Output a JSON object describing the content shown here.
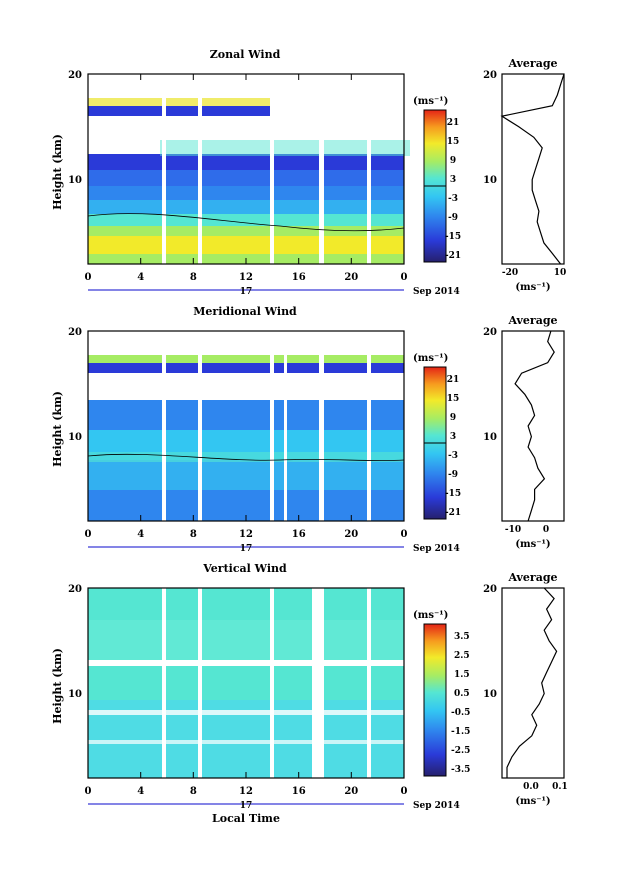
{
  "figure": {
    "xlabel": "Local Time",
    "date_label": "Sep 2014",
    "day_label": "17",
    "colorbar_unit": "(ms⁻¹)",
    "average_unit": "(ms⁻¹)",
    "y_axis_label": "Height (km)"
  },
  "chart_data": [
    {
      "type": "heatmap",
      "title": "Zonal Wind",
      "ylabel": "Height (km)",
      "xlabel": "",
      "x_ticks": [
        "0",
        "4",
        "8",
        "12",
        "16",
        "20",
        "0"
      ],
      "x_range": [
        0,
        24
      ],
      "y_ticks": [
        "20",
        "10"
      ],
      "ylim": [
        2,
        20
      ],
      "colorbar": {
        "unit": "(ms⁻¹)",
        "ticks": [
          "21",
          "15",
          "9",
          "3",
          "-3",
          "-9",
          "-15",
          "-21"
        ],
        "range": [
          -24,
          24
        ]
      },
      "data_gaps_hours": [
        [
          5.8,
          6.2
        ],
        [
          8.8,
          9.2
        ],
        [
          14.0,
          14.3
        ],
        [
          17.9,
          18.3
        ],
        [
          21.6,
          21.9
        ]
      ],
      "profile": {
        "title": "Average",
        "x_ticks": [
          "-20",
          "10"
        ],
        "xlim": [
          -25,
          12
        ],
        "height_km": [
          2,
          3,
          4,
          5,
          6,
          7,
          8,
          9,
          10,
          11,
          12,
          13,
          14,
          15,
          16,
          17,
          18,
          19,
          20
        ],
        "values": [
          10,
          5,
          0,
          -2,
          -4,
          -3,
          -5,
          -7,
          -7,
          -5,
          -3,
          -1,
          -6,
          -15,
          -25,
          5,
          8,
          10,
          12
        ]
      }
    },
    {
      "type": "heatmap",
      "title": "Meridional Wind",
      "ylabel": "Height (km)",
      "xlabel": "",
      "x_ticks": [
        "0",
        "4",
        "8",
        "12",
        "16",
        "20",
        "0"
      ],
      "x_range": [
        0,
        24
      ],
      "y_ticks": [
        "20",
        "10"
      ],
      "ylim": [
        2,
        20
      ],
      "colorbar": {
        "unit": "(ms⁻¹)",
        "ticks": [
          "21",
          "15",
          "9",
          "3",
          "-3",
          "-9",
          "-15",
          "-21"
        ],
        "range": [
          -24,
          24
        ]
      },
      "data_gaps_hours": [
        [
          5.8,
          6.2
        ],
        [
          8.8,
          9.2
        ],
        [
          14.0,
          14.3
        ],
        [
          15.5,
          15.7
        ],
        [
          17.9,
          18.3
        ],
        [
          21.6,
          21.9
        ]
      ],
      "profile": {
        "title": "Average",
        "x_ticks": [
          "-10",
          "0"
        ],
        "xlim": [
          -14,
          5
        ],
        "height_km": [
          2,
          3,
          4,
          5,
          6,
          7,
          8,
          9,
          10,
          11,
          12,
          13,
          14,
          15,
          16,
          17,
          18,
          19,
          20
        ],
        "values": [
          -6,
          -5,
          -4,
          -4,
          -1,
          -3,
          -4,
          -6,
          -5,
          -6,
          -4,
          -5,
          -7,
          -10,
          -8,
          0,
          2,
          0,
          1
        ]
      }
    },
    {
      "type": "heatmap",
      "title": "Vertical Wind",
      "ylabel": "Height (km)",
      "xlabel": "Local Time",
      "x_ticks": [
        "0",
        "4",
        "8",
        "12",
        "16",
        "20",
        "0"
      ],
      "x_range": [
        0,
        24
      ],
      "y_ticks": [
        "20",
        "10"
      ],
      "ylim": [
        2,
        20
      ],
      "colorbar": {
        "unit": "(ms⁻¹)",
        "ticks": [
          "3.5",
          "2.5",
          "1.5",
          "0.5",
          "-0.5",
          "-1.5",
          "-2.5",
          "-3.5"
        ],
        "range": [
          -4,
          4
        ]
      },
      "data_gaps_hours": [
        [
          5.8,
          6.2
        ],
        [
          8.8,
          9.2
        ],
        [
          14.0,
          14.3
        ],
        [
          17.0,
          17.7
        ],
        [
          21.6,
          21.9
        ]
      ],
      "profile": {
        "title": "Average",
        "x_ticks": [
          "0.0",
          "0.1"
        ],
        "xlim": [
          -0.12,
          0.13
        ],
        "height_km": [
          2,
          3,
          4,
          5,
          6,
          7,
          8,
          9,
          10,
          11,
          12,
          13,
          14,
          15,
          16,
          17,
          18,
          19,
          20
        ],
        "values": [
          -0.1,
          -0.1,
          -0.08,
          -0.05,
          0.0,
          0.02,
          0.0,
          0.03,
          0.05,
          0.04,
          0.06,
          0.08,
          0.1,
          0.07,
          0.05,
          0.08,
          0.06,
          0.09,
          0.05
        ]
      }
    }
  ]
}
